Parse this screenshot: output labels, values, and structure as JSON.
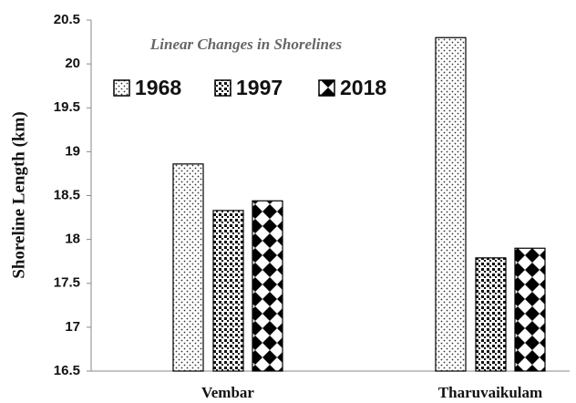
{
  "chart_data": {
    "type": "bar",
    "title": "Linear Changes in Shorelines",
    "y_label": "Shoreline Length (km)",
    "categories": [
      "Vembar",
      "Tharuvaikulam"
    ],
    "series": [
      {
        "name": "1968",
        "values": [
          18.86,
          20.3
        ]
      },
      {
        "name": "1997",
        "values": [
          18.33,
          17.79
        ]
      },
      {
        "name": "2018",
        "values": [
          18.44,
          17.9
        ]
      }
    ],
    "ylim": [
      16.5,
      20.5
    ],
    "yticks": [
      16.5,
      17,
      17.5,
      18,
      18.5,
      19,
      19.5,
      20,
      20.5
    ],
    "grid": false
  }
}
